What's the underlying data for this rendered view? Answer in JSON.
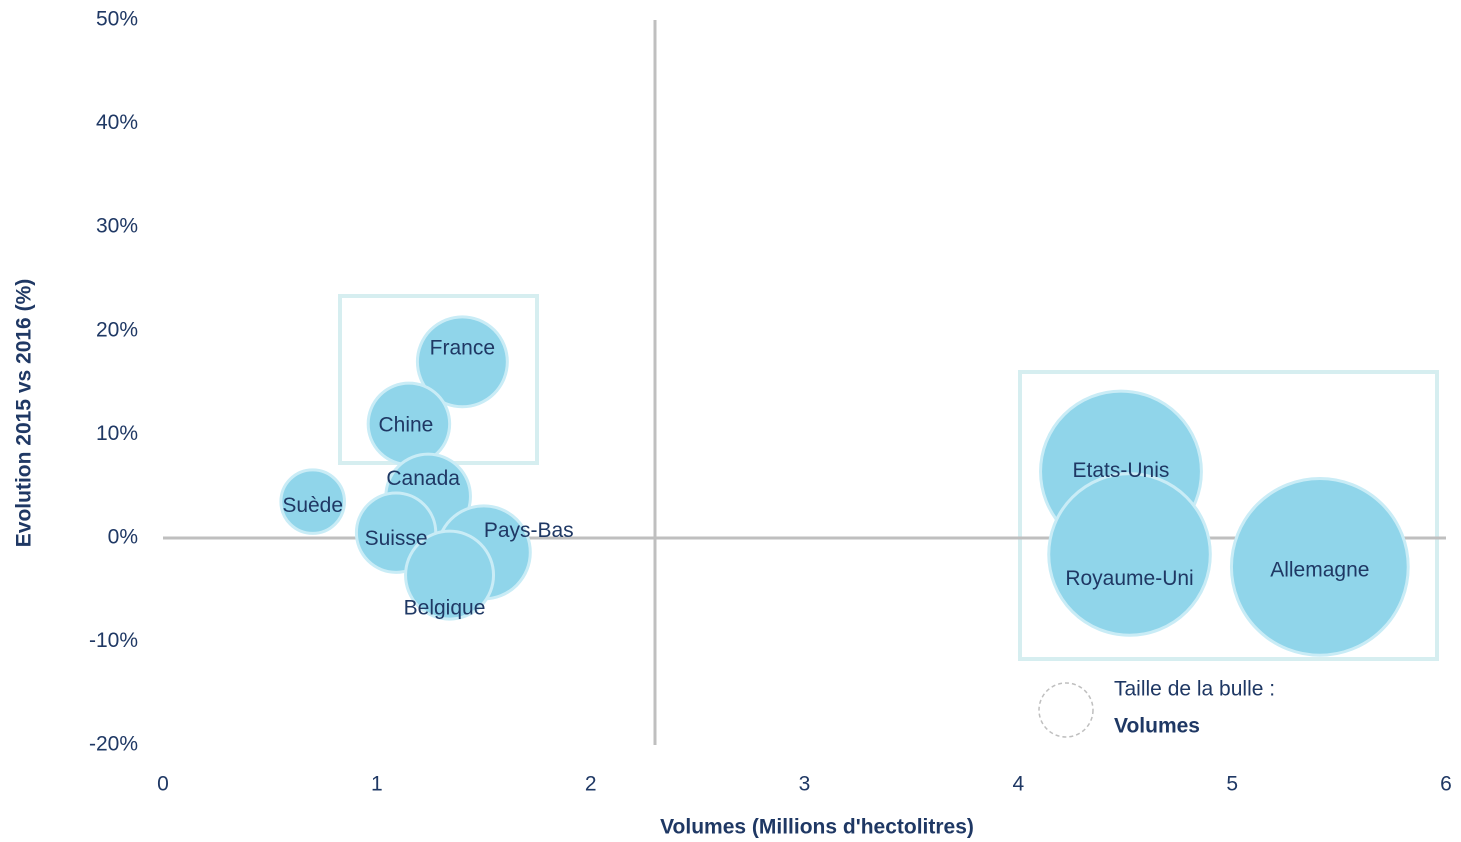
{
  "chart_data": {
    "type": "bubble",
    "x_label": "Volumes (Millions d'hectolitres)",
    "y_label": "Evolution 2015 vs 2016 (%)",
    "categories": [
      "France",
      "Chine",
      "Suède",
      "Canada",
      "Suisse",
      "Pays-Bas",
      "Belgique",
      "Etats-Unis",
      "Royaume-Uni",
      "Allemagne"
    ],
    "x": [
      1.4,
      1.15,
      0.7,
      1.24,
      1.09,
      1.5,
      1.34,
      4.48,
      4.52,
      5.41
    ],
    "values": [
      17,
      11,
      3.5,
      4,
      0.5,
      -1.4,
      -3.6,
      6.4,
      -1.6,
      -2.8
    ],
    "color": "#90d5ea",
    "xlim": [
      0,
      6
    ],
    "xticks": [
      0,
      1,
      2,
      3,
      4,
      5,
      6
    ],
    "ylim": [
      -20,
      50
    ],
    "yticks": [
      {
        "value": -20,
        "label": "-20%"
      },
      {
        "value": -10,
        "label": "-10%"
      },
      {
        "value": 0,
        "label": "0%"
      },
      {
        "value": 10,
        "label": "10%"
      },
      {
        "value": 20,
        "label": "20%"
      },
      {
        "value": 30,
        "label": "30%"
      },
      {
        "value": 40,
        "label": "40%"
      },
      {
        "value": 50,
        "label": "50%"
      }
    ],
    "size_legend": {
      "label": "Taille de la bulle :",
      "value": "Volumes"
    }
  }
}
